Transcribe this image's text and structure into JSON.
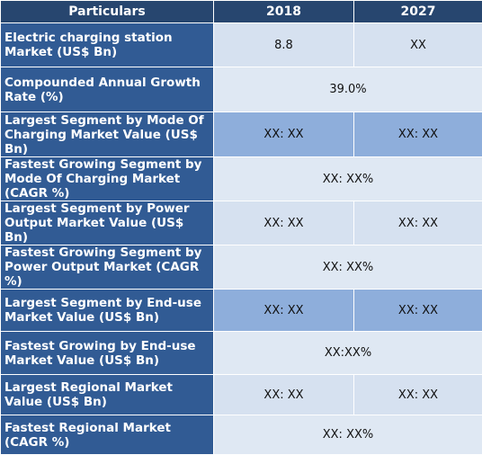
{
  "header": {
    "col_particulars": "Particulars",
    "col_2018": "2018",
    "col_2027": "2027"
  },
  "rows": [
    {
      "label": "Electric charging station Market (US$ Bn)",
      "v2018": "8.8",
      "v2027": "XX"
    },
    {
      "label": "Compounded Annual Growth Rate (%)",
      "merged": "39.0%"
    },
    {
      "label": "Largest Segment by Mode Of Charging Market Value (US$ Bn)",
      "v2018": "XX: XX",
      "v2027": "XX: XX"
    },
    {
      "label": "Fastest Growing Segment by Mode Of Charging Market (CAGR %)",
      "merged": "XX: XX%"
    },
    {
      "label": "Largest Segment by Power Output Market Value (US$ Bn)",
      "v2018": "XX: XX",
      "v2027": "XX: XX"
    },
    {
      "label": "Fastest Growing Segment by Power Output Market (CAGR %)",
      "merged": "XX: XX%"
    },
    {
      "label": "Largest Segment by End-use Market Value (US$ Bn)",
      "v2018": "XX: XX",
      "v2027": "XX: XX"
    },
    {
      "label": "Fastest Growing by End-use Market Value (US$ Bn)",
      "merged": "XX:XX%"
    },
    {
      "label": "Largest Regional Market Value (US$ Bn)",
      "v2018": "XX: XX",
      "v2027": "XX: XX"
    },
    {
      "label": "Fastest Regional Market (CAGR %)",
      "merged": "XX: XX%"
    }
  ]
}
